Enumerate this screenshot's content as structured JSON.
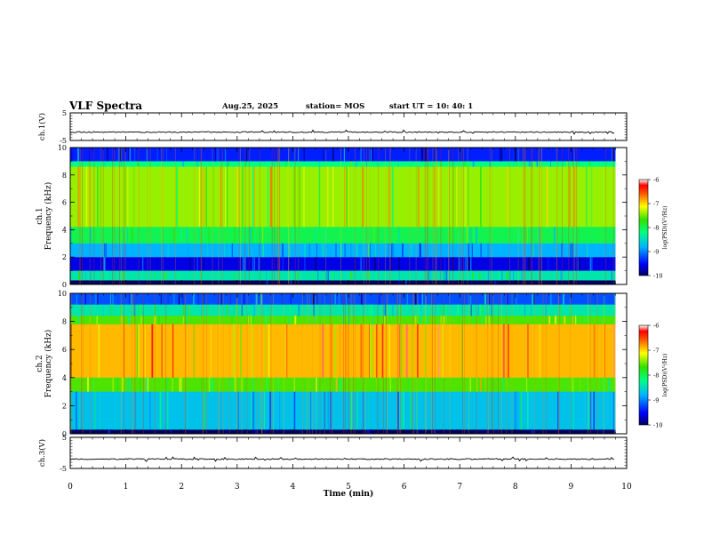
{
  "header": {
    "title": "VLF Spectra",
    "date": "Aug.25, 2025",
    "station": "station= MOS",
    "start_ut": "start  UT =   10: 40: 1"
  },
  "chart_data": [
    {
      "type": "line",
      "name": "ch1-waveform",
      "ylabel": "ch.1(V)",
      "ylim": [
        -5,
        5
      ],
      "yticks": [
        "5",
        "-5"
      ],
      "baseline": -2,
      "xlim": [
        0,
        9.8
      ]
    },
    {
      "type": "heatmap",
      "name": "ch1-spectrogram",
      "ylabel_line1": "ch.1",
      "ylabel_line2": "Frequency (kHz)",
      "ylim": [
        0,
        10
      ],
      "yticks": [
        "0",
        "2",
        "4",
        "6",
        "8",
        "10"
      ],
      "xlim": [
        0,
        9.8
      ],
      "bands": [
        {
          "from": 0,
          "to": 0.3,
          "level": -10
        },
        {
          "from": 0.3,
          "to": 1.0,
          "level": -8.4
        },
        {
          "from": 1.0,
          "to": 2.0,
          "level": -9.6
        },
        {
          "from": 2.0,
          "to": 3.0,
          "level": -8.8
        },
        {
          "from": 3.0,
          "to": 4.2,
          "level": -8.0
        },
        {
          "from": 4.2,
          "to": 8.6,
          "level": -7.4
        },
        {
          "from": 8.6,
          "to": 9.0,
          "level": -8.2
        },
        {
          "from": 9.0,
          "to": 10,
          "level": -9.4
        }
      ],
      "colorbar": {
        "label": "log(PSD)(V²/Hz)",
        "ticks": [
          "-6",
          "-7",
          "-8",
          "-9",
          "-10"
        ],
        "range": [
          -10,
          -6
        ]
      }
    },
    {
      "type": "heatmap",
      "name": "ch2-spectrogram",
      "ylabel_line1": "ch.2",
      "ylabel_line2": "Frequency (kHz)",
      "ylim": [
        0,
        10
      ],
      "yticks": [
        "0",
        "2",
        "4",
        "6",
        "8",
        "10"
      ],
      "xlim": [
        0,
        9.8
      ],
      "bands": [
        {
          "from": 0,
          "to": 0.3,
          "level": -10
        },
        {
          "from": 0.3,
          "to": 3.0,
          "level": -8.7
        },
        {
          "from": 3.0,
          "to": 4.0,
          "level": -7.6
        },
        {
          "from": 4.0,
          "to": 7.8,
          "level": -6.9
        },
        {
          "from": 7.8,
          "to": 8.4,
          "level": -7.6
        },
        {
          "from": 8.4,
          "to": 9.2,
          "level": -8.4
        },
        {
          "from": 9.2,
          "to": 10,
          "level": -9.2
        }
      ],
      "colorbar": {
        "label": "log(PSD)(V²/Hz)",
        "ticks": [
          "-6",
          "-7",
          "-8",
          "-9",
          "-10"
        ],
        "range": [
          -10,
          -6
        ]
      }
    },
    {
      "type": "line",
      "name": "ch3-waveform",
      "ylabel": "ch.3(V)",
      "ylim": [
        -5,
        5
      ],
      "yticks": [
        "5",
        "-5"
      ],
      "baseline": -2,
      "xlim": [
        0,
        9.8
      ]
    }
  ],
  "x_axis": {
    "label": "Time  (min)",
    "range": [
      0,
      10
    ],
    "ticks": [
      "0",
      "1",
      "2",
      "3",
      "4",
      "5",
      "6",
      "7",
      "8",
      "9",
      "10"
    ]
  }
}
